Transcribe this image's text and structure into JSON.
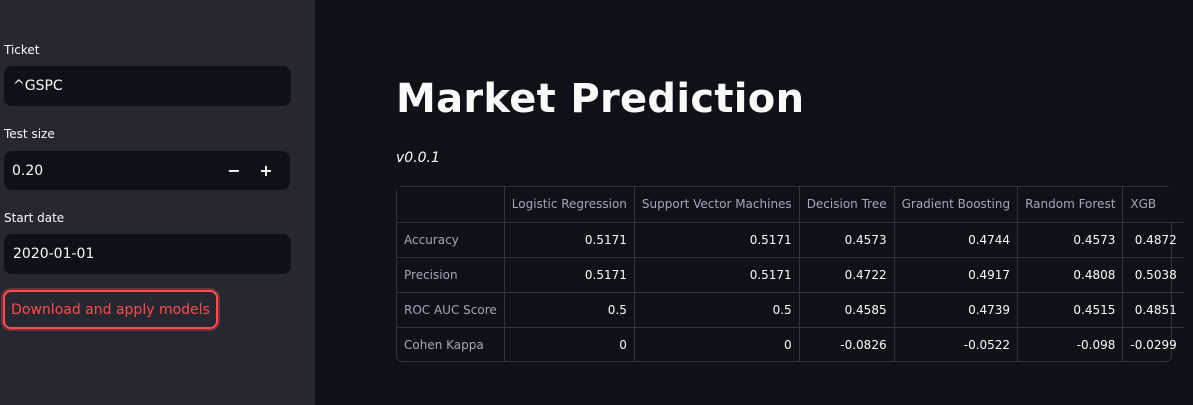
{
  "sidebar": {
    "ticket_label": "Ticket",
    "ticket_value": "^GSPC",
    "test_size_label": "Test size",
    "test_size_value": "0.20",
    "minus": "−",
    "plus": "+",
    "start_date_label": "Start date",
    "start_date_value": "2020-01-01",
    "download_button": "Download and apply models"
  },
  "main": {
    "title": "Market Prediction",
    "version": "v0.0.1"
  },
  "table": {
    "columns": [
      "",
      "Logistic Regression",
      "Support Vector Machines",
      "Decision Tree",
      "Gradient Boosting",
      "Random Forest",
      "XGB"
    ],
    "rows": [
      [
        "Accuracy",
        "0.5171",
        "0.5171",
        "0.4573",
        "0.4744",
        "0.4573",
        "0.4872"
      ],
      [
        "Precision",
        "0.5171",
        "0.5171",
        "0.4722",
        "0.4917",
        "0.4808",
        "0.5038"
      ],
      [
        "ROC AUC Score",
        "0.5",
        "0.5",
        "0.4585",
        "0.4739",
        "0.4515",
        "0.4851"
      ],
      [
        "Cohen Kappa",
        "0",
        "0",
        "-0.0826",
        "-0.0522",
        "-0.098",
        "-0.0299"
      ]
    ]
  },
  "colors": {
    "background": "#0e1117",
    "sidebar": "#262730",
    "accent": "#ff4b4b"
  }
}
